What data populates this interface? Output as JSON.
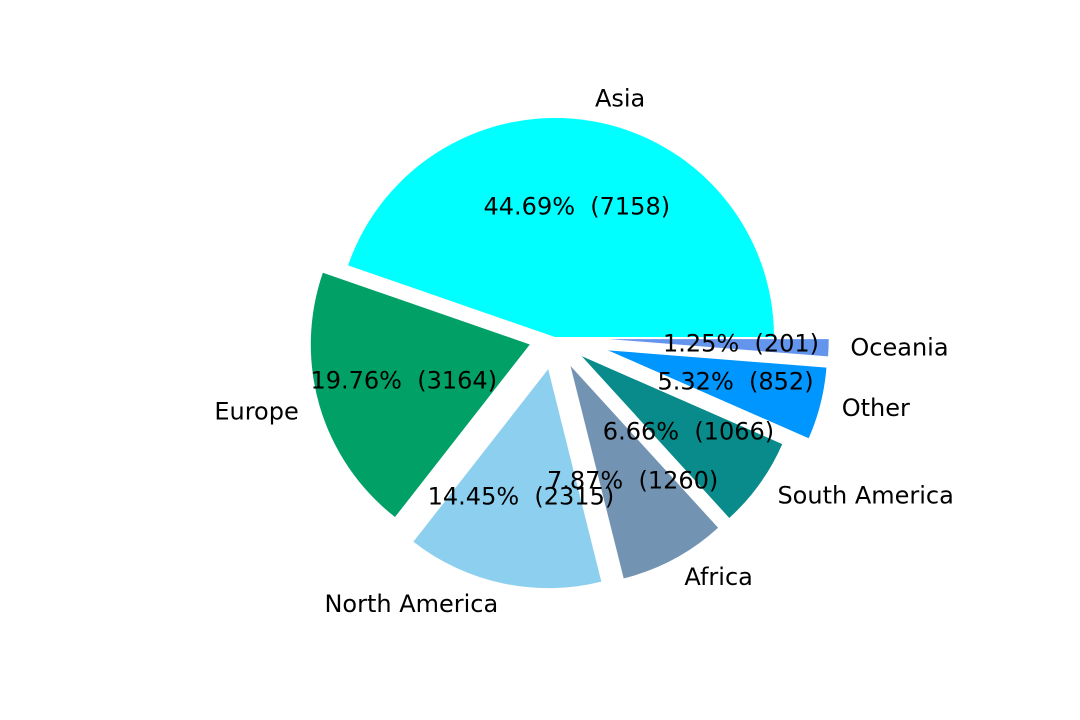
{
  "chart_data": {
    "type": "pie",
    "title": "",
    "start_angle_deg": 0,
    "direction": "counterclockwise",
    "slices": [
      {
        "label": "Asia",
        "value": 7158,
        "percent_text": "44.69%",
        "value_text": "(7158)",
        "color": "#00ffff",
        "explode": 0.0
      },
      {
        "label": "Europe",
        "value": 3164,
        "percent_text": "19.76%",
        "value_text": "(3164)",
        "color": "#00a067",
        "explode": 0.12
      },
      {
        "label": "North America",
        "value": 2315,
        "percent_text": "14.45%",
        "value_text": "(2315)",
        "color": "#8ccfef",
        "explode": 0.15
      },
      {
        "label": "Africa",
        "value": 1260,
        "percent_text": "7.87%",
        "value_text": "(1260)",
        "color": "#7393b3",
        "explode": 0.15
      },
      {
        "label": "South America",
        "value": 1066,
        "percent_text": "6.66%",
        "value_text": "(1066)",
        "color": "#088b8a",
        "explode": 0.15
      },
      {
        "label": "Other",
        "value": 852,
        "percent_text": "5.32%",
        "value_text": "(852)",
        "color": "#0096ff",
        "explode": 0.25
      },
      {
        "label": "Oceania",
        "value": 201,
        "percent_text": "1.25%",
        "value_text": "(201)",
        "color": "#6495ed",
        "explode": 0.25
      }
    ]
  }
}
